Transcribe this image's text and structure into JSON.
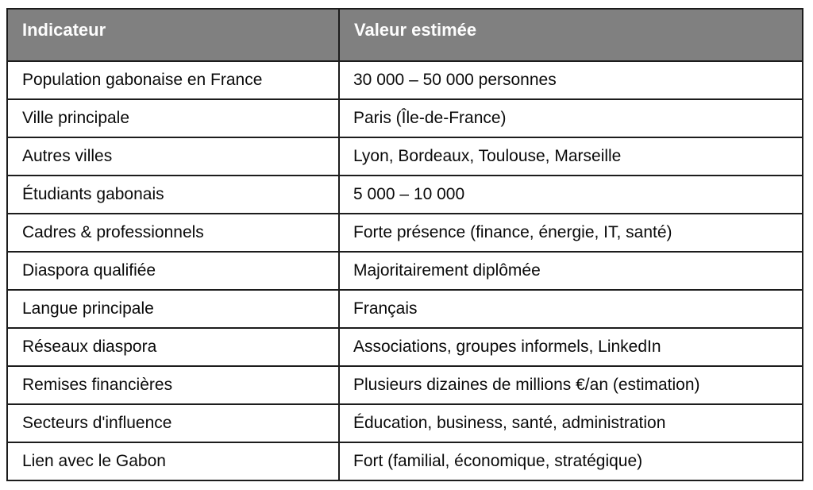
{
  "page": {
    "background_color": "#ffffff"
  },
  "table": {
    "header_bg_color": "#808080",
    "header_text_color": "#fdfdfd",
    "border_color": "#1c1c1c",
    "columns": [
      "Indicateur",
      "Valeur estimée"
    ],
    "rows": [
      {
        "indicator": "Population gabonaise en France",
        "value": "30 000 – 50 000 personnes"
      },
      {
        "indicator": "Ville principale",
        "value": "Paris (Île-de-France)"
      },
      {
        "indicator": "Autres villes",
        "value": "Lyon, Bordeaux, Toulouse, Marseille"
      },
      {
        "indicator": "Étudiants gabonais",
        "value": "5 000 – 10 000"
      },
      {
        "indicator": "Cadres & professionnels",
        "value": "Forte présence (finance, énergie, IT, santé)"
      },
      {
        "indicator": "Diaspora qualifiée",
        "value": "Majoritairement diplômée"
      },
      {
        "indicator": "Langue principale",
        "value": "Français"
      },
      {
        "indicator": "Réseaux diaspora",
        "value": "Associations, groupes informels, LinkedIn"
      },
      {
        "indicator": "Remises financières",
        "value": "Plusieurs dizaines de millions €/an (estimation)"
      },
      {
        "indicator": "Secteurs d'influence",
        "value": "Éducation, business, santé, administration"
      },
      {
        "indicator": "Lien avec le Gabon",
        "value": "Fort (familial, économique, stratégique)"
      }
    ]
  }
}
